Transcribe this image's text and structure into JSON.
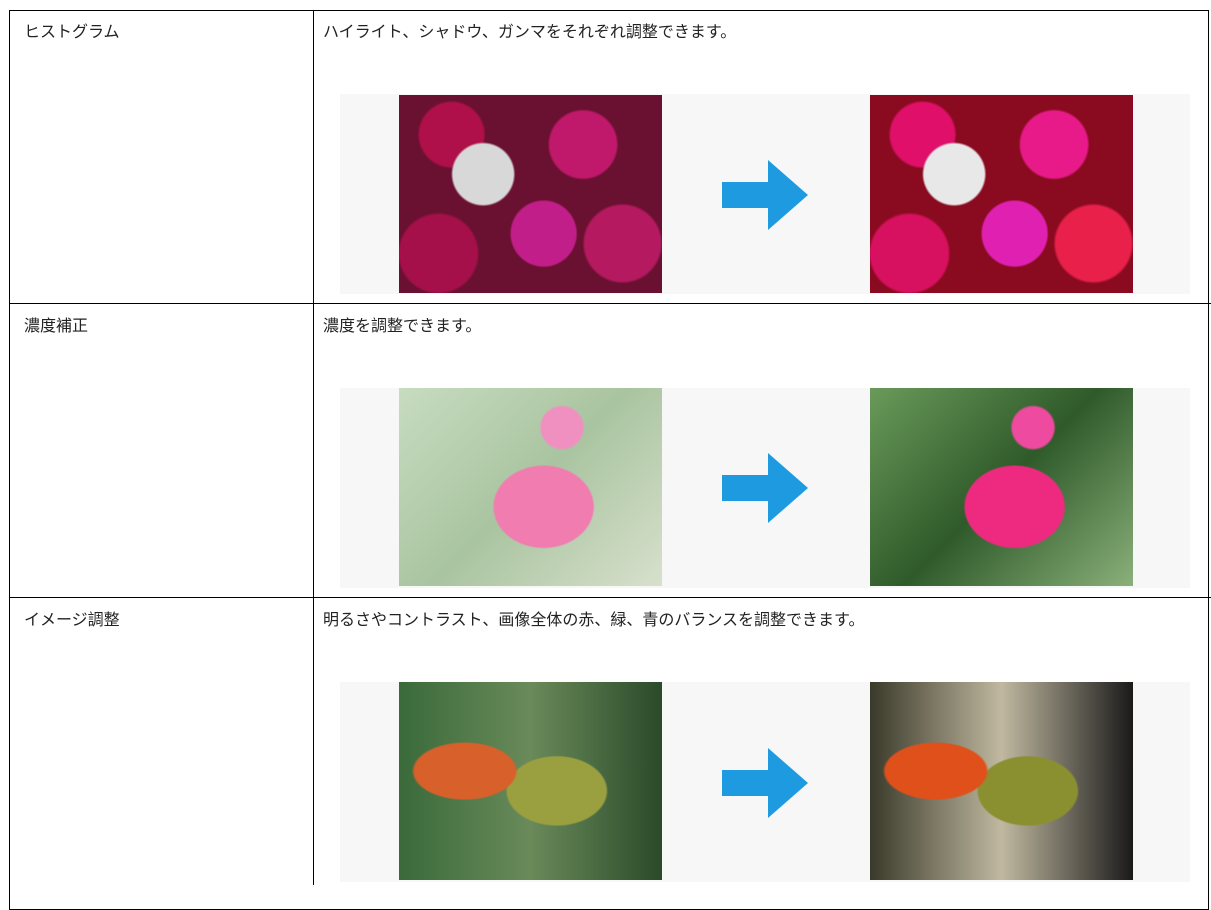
{
  "table": {
    "rows": [
      [
        "ヒストグラム",
        "ハイライト、シャドウ、ガンマをそれぞれ調整できます。"
      ],
      [
        "濃度補正",
        "濃度を調整できます。"
      ],
      [
        "イメージ調整",
        "明るさやコントラスト、画像全体の赤、緑、青のバランスを調整できます。"
      ]
    ]
  }
}
